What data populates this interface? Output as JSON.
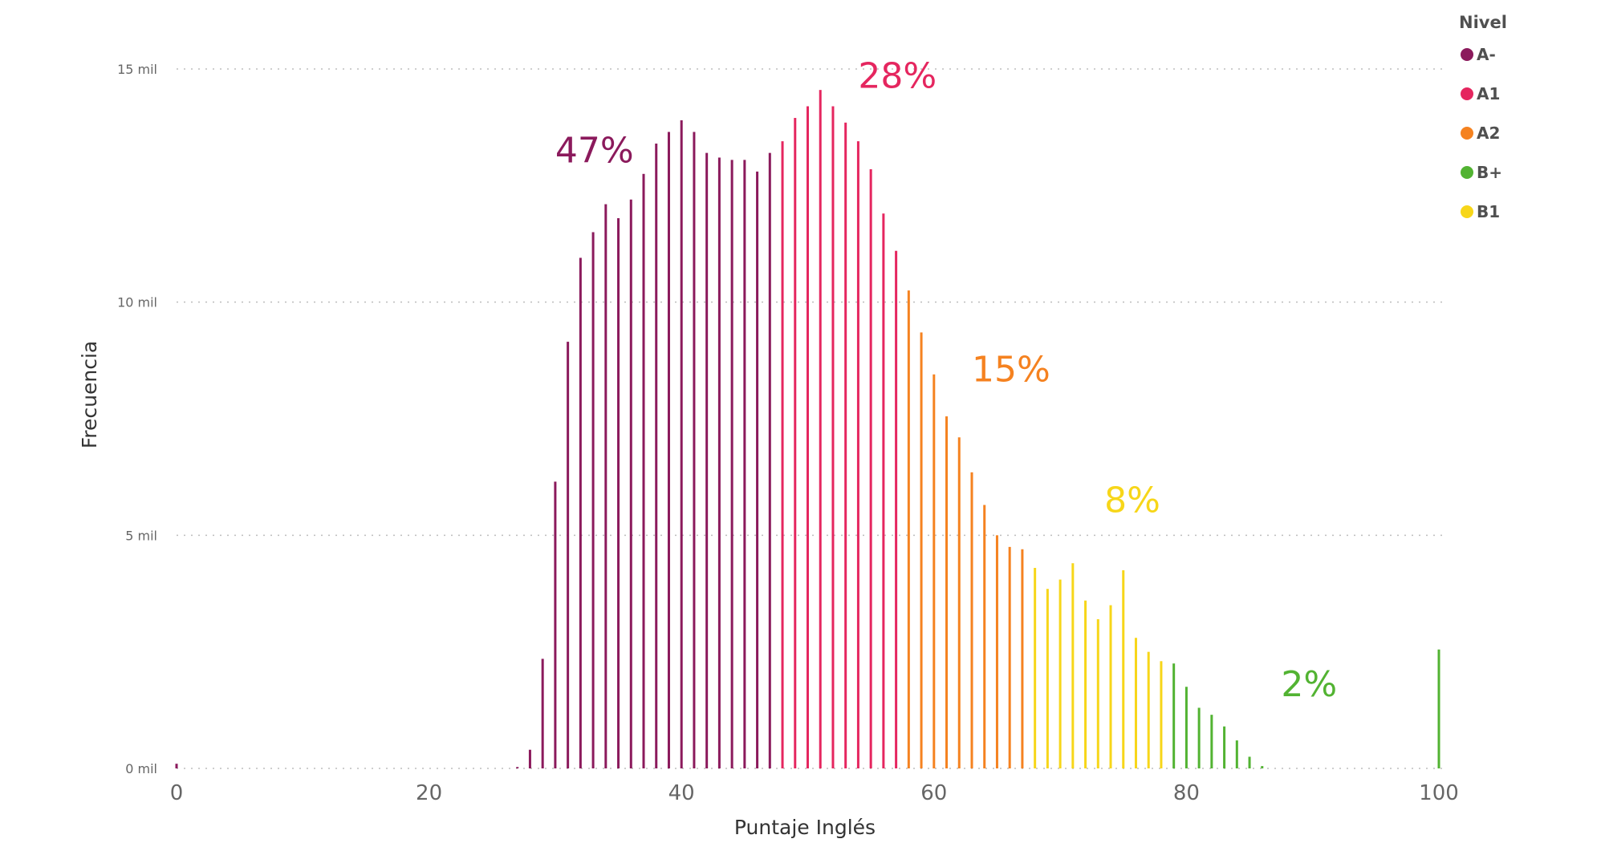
{
  "chart_data": {
    "type": "bar",
    "title": "",
    "xlabel": "Puntaje Inglés",
    "ylabel": "Frecuencia",
    "xlim": [
      0,
      100
    ],
    "ylim": [
      0,
      15000
    ],
    "x_ticks": [
      {
        "value": 0,
        "label": "0"
      },
      {
        "value": 20,
        "label": "20"
      },
      {
        "value": 40,
        "label": "40"
      },
      {
        "value": 60,
        "label": "60"
      },
      {
        "value": 80,
        "label": "80"
      },
      {
        "value": 100,
        "label": "100"
      }
    ],
    "y_ticks": [
      {
        "value": 0,
        "label": "0 mil"
      },
      {
        "value": 5000,
        "label": "5 mil"
      },
      {
        "value": 10000,
        "label": "10 mil"
      },
      {
        "value": 15000,
        "label": "15 mil"
      }
    ],
    "grid": true,
    "legend": {
      "title": "Nivel",
      "position": "top-right",
      "items": [
        {
          "key": "A-",
          "label": "A-",
          "color": "#8b1a5c"
        },
        {
          "key": "A1",
          "label": "A1",
          "color": "#e5265f"
        },
        {
          "key": "A2",
          "label": "A2",
          "color": "#f58220"
        },
        {
          "key": "B+",
          "label": "B+",
          "color": "#52b332"
        },
        {
          "key": "B1",
          "label": "B1",
          "color": "#f7d619"
        }
      ]
    },
    "annotations": [
      {
        "level": "A-",
        "text": "47%",
        "x": 30,
        "y": 13000
      },
      {
        "level": "A1",
        "text": "28%",
        "x": 54,
        "y": 14600
      },
      {
        "level": "A2",
        "text": "15%",
        "x": 63,
        "y": 8300
      },
      {
        "level": "B1",
        "text": "8%",
        "x": 73.5,
        "y": 5500
      },
      {
        "level": "B+",
        "text": "2%",
        "x": 87.5,
        "y": 1550
      }
    ],
    "series": [
      {
        "level": "A-",
        "color": "#8b1a5c",
        "x": [
          0,
          27,
          28,
          29,
          30,
          31,
          32,
          33,
          34,
          35,
          36,
          37,
          38,
          39,
          40,
          41,
          42,
          43,
          44,
          45,
          46,
          47
        ],
        "values": [
          100,
          30,
          400,
          2350,
          6150,
          9150,
          10950,
          11500,
          12100,
          11800,
          12200,
          12750,
          13400,
          13650,
          13900,
          13650,
          13200,
          13100,
          13050,
          13050,
          12800,
          13200
        ]
      },
      {
        "level": "A1",
        "color": "#e5265f",
        "x": [
          48,
          49,
          50,
          51,
          52,
          53,
          54,
          55,
          56,
          57
        ],
        "values": [
          13450,
          13950,
          14200,
          14550,
          14200,
          13850,
          13450,
          12850,
          11900,
          11100
        ]
      },
      {
        "level": "A2",
        "color": "#f58220",
        "x": [
          58,
          59,
          60,
          61,
          62,
          63,
          64,
          65,
          66,
          67
        ],
        "values": [
          10250,
          9350,
          8450,
          7550,
          7100,
          6350,
          5650,
          5000,
          4750,
          4700
        ]
      },
      {
        "level": "B1",
        "color": "#f7d619",
        "x": [
          68,
          69,
          70,
          71,
          72,
          73,
          74,
          75,
          76,
          77,
          78
        ],
        "values": [
          4300,
          3850,
          4050,
          4400,
          3600,
          3200,
          3500,
          4250,
          2800,
          2500,
          2300
        ]
      },
      {
        "level": "B+",
        "color": "#52b332",
        "x": [
          79,
          80,
          81,
          82,
          83,
          84,
          85,
          86,
          100
        ],
        "values": [
          2250,
          1750,
          1300,
          1150,
          900,
          600,
          250,
          50,
          2550
        ]
      }
    ]
  }
}
